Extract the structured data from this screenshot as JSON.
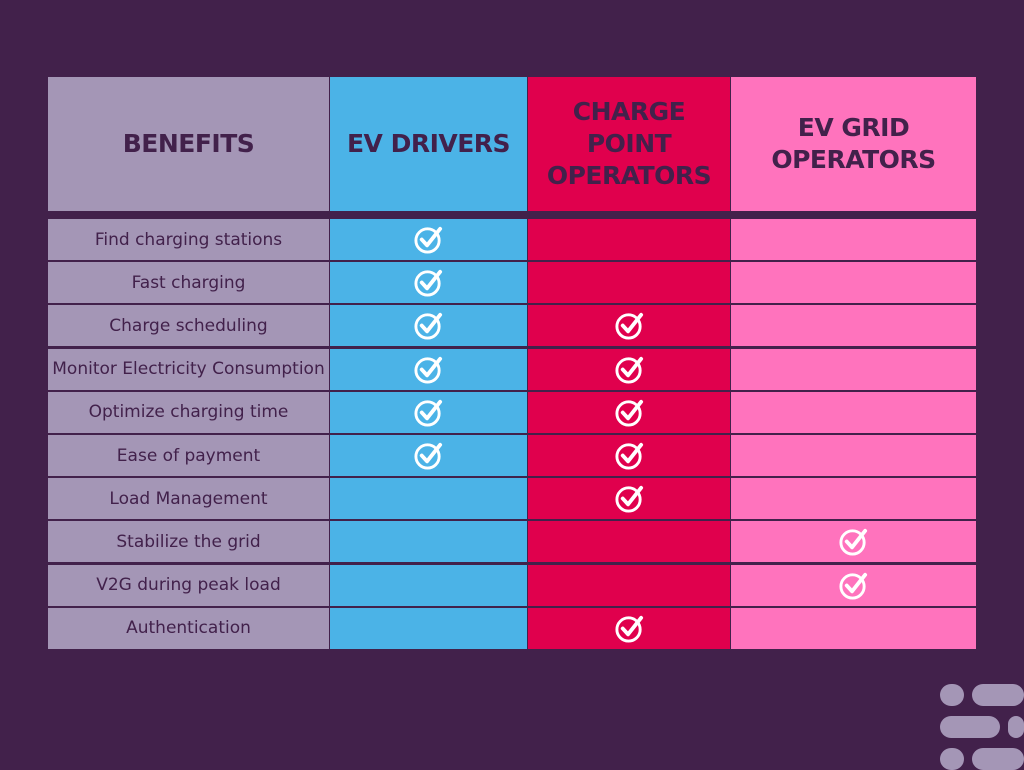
{
  "header": {
    "benefits": "BENEFITS",
    "ev_drivers": "EV DRIVERS",
    "charge_point_operators": "CHARGE POINT OPERATORS",
    "ev_grid_operators": "EV GRID OPERATORS"
  },
  "check_icon": "circle-check-icon",
  "colors": {
    "background": "#42214b",
    "benefits_column": "#a496b6",
    "ev_drivers_column": "#4bb3e7",
    "charge_point_operators_column": "#e0004d",
    "ev_grid_operators_column": "#ff73bd"
  },
  "rows": [
    {
      "benefit": "Find charging stations",
      "ev_drivers": true,
      "charge_point_operators": false,
      "ev_grid_operators": false
    },
    {
      "benefit": "Fast charging",
      "ev_drivers": true,
      "charge_point_operators": false,
      "ev_grid_operators": false
    },
    {
      "benefit": "Charge scheduling",
      "ev_drivers": true,
      "charge_point_operators": true,
      "ev_grid_operators": false
    },
    {
      "benefit": "Monitor Electricity Consumption",
      "ev_drivers": true,
      "charge_point_operators": true,
      "ev_grid_operators": false
    },
    {
      "benefit": "Optimize charging time",
      "ev_drivers": true,
      "charge_point_operators": true,
      "ev_grid_operators": false
    },
    {
      "benefit": "Ease of payment",
      "ev_drivers": true,
      "charge_point_operators": true,
      "ev_grid_operators": false
    },
    {
      "benefit": "Load Management",
      "ev_drivers": false,
      "charge_point_operators": true,
      "ev_grid_operators": false
    },
    {
      "benefit": "Stabilize the grid",
      "ev_drivers": false,
      "charge_point_operators": false,
      "ev_grid_operators": true
    },
    {
      "benefit": "V2G during peak load",
      "ev_drivers": false,
      "charge_point_operators": false,
      "ev_grid_operators": true
    },
    {
      "benefit": "Authentication",
      "ev_drivers": false,
      "charge_point_operators": true,
      "ev_grid_operators": false
    }
  ]
}
